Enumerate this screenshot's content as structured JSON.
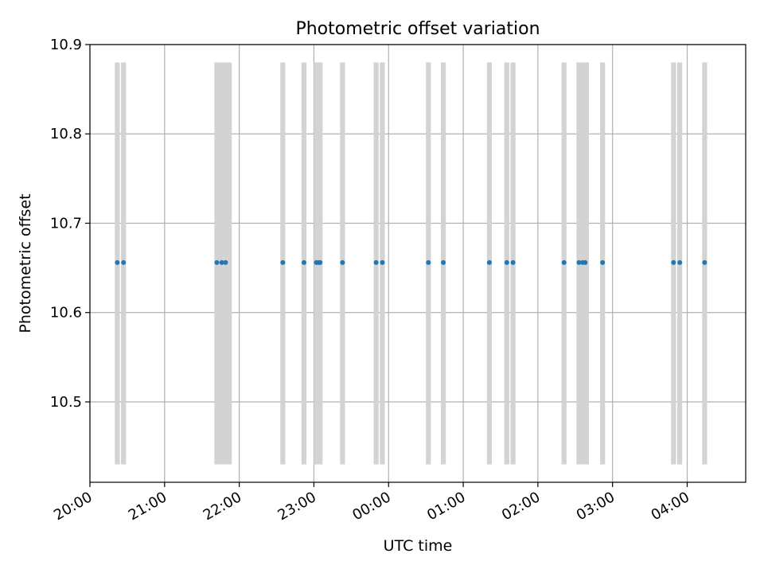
{
  "chart_data": {
    "type": "scatter",
    "title": "Photometric offset variation",
    "xlabel": "UTC time",
    "ylabel": "Photometric offset",
    "x_axis": {
      "kind": "time",
      "range": [
        "20:00",
        "04:47"
      ],
      "ticks": [
        "20:00",
        "21:00",
        "22:00",
        "23:00",
        "00:00",
        "01:00",
        "02:00",
        "03:00",
        "04:00"
      ]
    },
    "y_axis": {
      "range": [
        10.41,
        10.9
      ],
      "ticks": [
        "10.5",
        "10.6",
        "10.7",
        "10.8",
        "10.9"
      ]
    },
    "grid": true,
    "bands": {
      "color": "#d3d3d3",
      "y_range": [
        10.43,
        10.88
      ],
      "intervals": [
        [
          "20:20",
          "20:24"
        ],
        [
          "20:25",
          "20:29"
        ],
        [
          "21:40",
          "21:54"
        ],
        [
          "22:33",
          "22:37"
        ],
        [
          "22:50",
          "22:54"
        ],
        [
          "23:00",
          "23:07"
        ],
        [
          "23:21",
          "23:25"
        ],
        [
          "23:48",
          "23:52"
        ],
        [
          "23:53",
          "23:57"
        ],
        [
          "00:30",
          "00:34"
        ],
        [
          "00:42",
          "00:46"
        ],
        [
          "01:19",
          "01:23"
        ],
        [
          "01:33",
          "01:37"
        ],
        [
          "01:38",
          "01:42"
        ],
        [
          "02:19",
          "02:23"
        ],
        [
          "02:31",
          "02:41"
        ],
        [
          "02:50",
          "02:54"
        ],
        [
          "03:47",
          "03:51"
        ],
        [
          "03:52",
          "03:56"
        ],
        [
          "04:12",
          "04:16"
        ]
      ]
    },
    "series": [
      {
        "color": "#1f77b4",
        "points": [
          [
            "20:22",
            10.656
          ],
          [
            "20:27",
            10.656
          ],
          [
            "21:42",
            10.656
          ],
          [
            "21:46",
            10.656
          ],
          [
            "21:49",
            10.656
          ],
          [
            "22:35",
            10.656
          ],
          [
            "22:52",
            10.656
          ],
          [
            "23:02",
            10.656
          ],
          [
            "23:04",
            10.656
          ],
          [
            "23:05",
            10.656
          ],
          [
            "23:23",
            10.656
          ],
          [
            "23:50",
            10.656
          ],
          [
            "23:55",
            10.656
          ],
          [
            "00:32",
            10.656
          ],
          [
            "00:44",
            10.656
          ],
          [
            "01:21",
            10.656
          ],
          [
            "01:35",
            10.656
          ],
          [
            "01:40",
            10.656
          ],
          [
            "02:21",
            10.656
          ],
          [
            "02:33",
            10.656
          ],
          [
            "02:36",
            10.656
          ],
          [
            "02:38",
            10.656
          ],
          [
            "02:52",
            10.656
          ],
          [
            "03:49",
            10.656
          ],
          [
            "03:54",
            10.656
          ],
          [
            "04:14",
            10.656
          ]
        ]
      }
    ]
  }
}
